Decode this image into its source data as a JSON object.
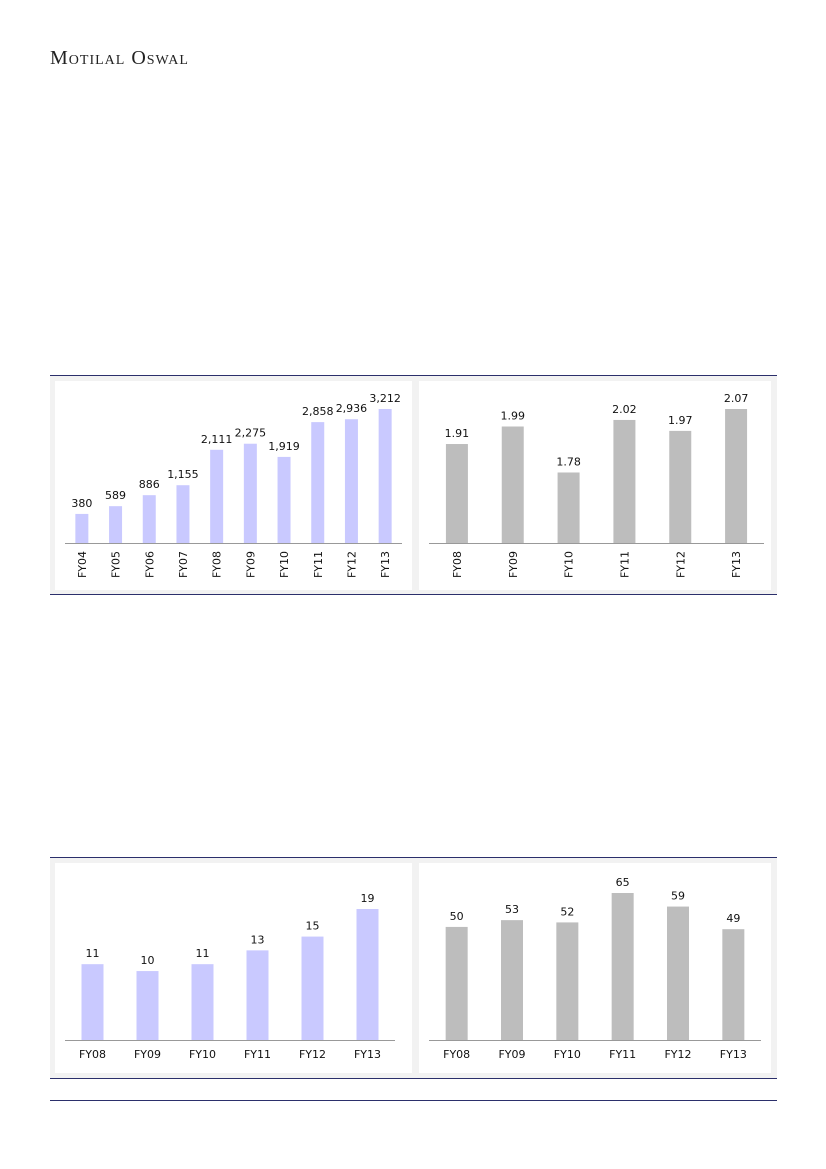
{
  "header": {
    "brand": "Motilal Oswal"
  },
  "colors": {
    "lavender": "#c9c9ff",
    "gray": "#bdbdbd",
    "rule": "#2b2f6b"
  },
  "chart_data": [
    {
      "type": "bar",
      "categories": [
        "FY04",
        "FY05",
        "FY06",
        "FY07",
        "FY08",
        "FY09",
        "FY10",
        "FY11",
        "FY12",
        "FY13"
      ],
      "values": [
        380,
        589,
        886,
        1155,
        2111,
        2275,
        1919,
        2858,
        2936,
        3212
      ],
      "labels": [
        "380",
        "589",
        "886",
        "1,155",
        "2,111",
        "2,275",
        "1,919",
        "2,858",
        "2,936",
        "3,212"
      ],
      "ylim": [
        0,
        3212
      ],
      "color": "#c9c9ff",
      "tick_rotation": "vertical",
      "grid": false
    },
    {
      "type": "bar",
      "categories": [
        "FY08",
        "FY09",
        "FY10",
        "FY11",
        "FY12",
        "FY13"
      ],
      "values": [
        1.91,
        1.99,
        1.78,
        2.02,
        1.97,
        2.07
      ],
      "labels": [
        "1.91",
        "1.99",
        "1.78",
        "2.02",
        "1.97",
        "2.07"
      ],
      "ylim": [
        1.7,
        2.07
      ],
      "color": "#bdbdbd",
      "tick_rotation": "vertical",
      "grid": false
    },
    {
      "type": "bar",
      "categories": [
        "FY08",
        "FY09",
        "FY10",
        "FY11",
        "FY12",
        "FY13"
      ],
      "values": [
        11,
        10,
        11,
        13,
        15,
        19
      ],
      "labels": [
        "11",
        "10",
        "11",
        "13",
        "15",
        "19"
      ],
      "ylim": [
        0,
        19
      ],
      "color": "#c9c9ff",
      "tick_rotation": "horizontal",
      "grid": false
    },
    {
      "type": "bar",
      "categories": [
        "FY08",
        "FY09",
        "FY10",
        "FY11",
        "FY12",
        "FY13"
      ],
      "values": [
        50,
        53,
        52,
        65,
        59,
        49
      ],
      "labels": [
        "50",
        "53",
        "52",
        "65",
        "59",
        "49"
      ],
      "ylim": [
        0,
        65
      ],
      "color": "#bdbdbd",
      "tick_rotation": "horizontal",
      "grid": false
    }
  ]
}
